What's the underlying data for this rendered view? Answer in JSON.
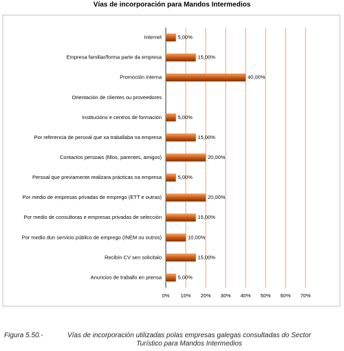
{
  "chart_data": {
    "type": "bar",
    "orientation": "horizontal",
    "title": "Vías de incorporación para Mandos Intermedios",
    "categories": [
      "Internet",
      "Empresa familiar/forma parte da empresa",
      "Promoción interna",
      "Orientación de clientes ou proveedores",
      "Institucións e centros de formación",
      "Por referencia de persoal que xa traballaba na empresa",
      "Contactos persoais (fillos, parentes, amigos)",
      "Persoal que previamente realizara prácticas na empresa",
      "Por medio de empresas privadas de emprego (ETT e outras)",
      "Por medio  de consultoras e empresas privadas de selección",
      "Por medio dun servicio público de emprego (INEM ou outros)",
      "Recibín CV sen solicitalo",
      "Anuncios de traballo en prensa"
    ],
    "values": [
      5,
      15,
      40,
      null,
      5,
      15,
      20,
      5,
      20,
      15,
      10,
      15,
      5
    ],
    "value_labels": [
      "5,00%",
      "15,00%",
      "40,00%",
      null,
      "5,00%",
      "15,00%",
      "20,00%",
      "5,00%",
      "20,00%",
      "15,00%",
      "10,00%",
      "15,00%",
      "5,00%"
    ],
    "color": "#cc5a14",
    "xlim": [
      0,
      70
    ],
    "xticks": [
      {
        "value": 0,
        "label": "0%"
      },
      {
        "value": 10,
        "label": "10%"
      },
      {
        "value": 20,
        "label": "20%"
      },
      {
        "value": 30,
        "label": "30%"
      },
      {
        "value": 40,
        "label": "40%"
      },
      {
        "value": 50,
        "label": "50%"
      },
      {
        "value": 60,
        "label": "60%"
      },
      {
        "value": 70,
        "label": "70%"
      }
    ],
    "grid": true,
    "grid_color": "#e8903c",
    "figure_label": "Figura 5.50.-",
    "caption": "Vías de incorporación utilizadas polas empresas galegas consultadas do Sector Turístico para Mandos Intermedios"
  }
}
